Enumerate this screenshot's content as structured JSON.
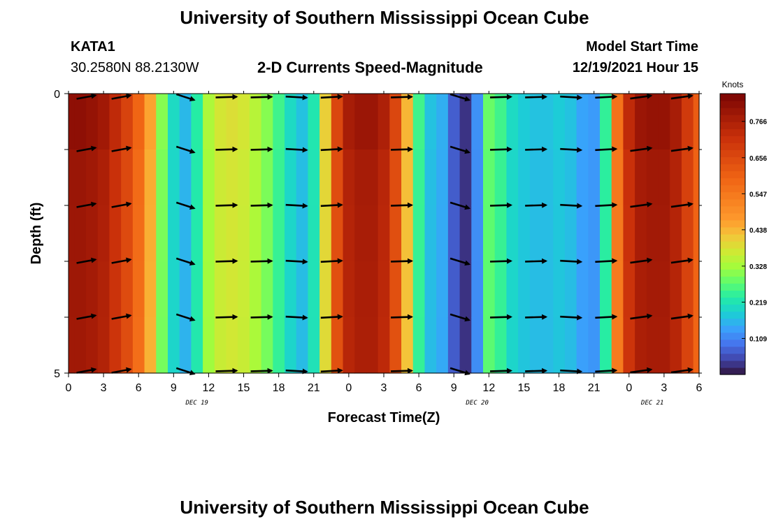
{
  "header": {
    "title": "University of Southern Mississippi Ocean Cube",
    "station": "KATA1",
    "coordinates": "30.2580N  88.2130W",
    "subtitle": "2-D Currents Speed-Magnitude",
    "model_start_label": "Model Start Time",
    "model_start_value": "12/19/2021 Hour 15",
    "footer_title": "University of Southern Mississippi Ocean Cube"
  },
  "chart_data": {
    "type": "heatmap",
    "title": "2-D Currents Speed-Magnitude",
    "xlabel": "Forecast Time(Z)",
    "ylabel": "Depth (ft)",
    "xlim": [
      0,
      54
    ],
    "ylim": [
      5,
      0
    ],
    "x_tick_values": [
      0,
      3,
      6,
      9,
      12,
      15,
      18,
      21,
      24,
      27,
      30,
      33,
      36,
      39,
      42,
      45,
      48,
      51,
      54
    ],
    "x_tick_labels": [
      "0",
      "3",
      "6",
      "9",
      "12",
      "15",
      "18",
      "21",
      "0",
      "3",
      "6",
      "9",
      "12",
      "15",
      "18",
      "21",
      "0",
      "3",
      "6"
    ],
    "y_tick_values": [
      0,
      5
    ],
    "y_tick_labels": [
      "0",
      "5"
    ],
    "date_labels": [
      {
        "label": "DEC 19",
        "hour": 11
      },
      {
        "label": "DEC 20",
        "hour": 35
      },
      {
        "label": "DEC 21",
        "hour": 50
      }
    ],
    "colorbar": {
      "title": "Knots",
      "min": 0.0,
      "max": 0.85,
      "tick_values": [
        0.109,
        0.219,
        0.328,
        0.438,
        0.547,
        0.656,
        0.766
      ],
      "tick_labels": [
        "0.109",
        "0.219",
        "0.328",
        "0.438",
        "0.547",
        "0.656",
        "0.766"
      ]
    },
    "hours": [
      0,
      1,
      2,
      3,
      4,
      5,
      6,
      7,
      8,
      9,
      10,
      11,
      12,
      13,
      14,
      15,
      16,
      17,
      18,
      19,
      20,
      21,
      22,
      23,
      24,
      25,
      26,
      27,
      28,
      29,
      30,
      31,
      32,
      33,
      34,
      35,
      36,
      37,
      38,
      39,
      40,
      41,
      42,
      43,
      44,
      45,
      46,
      47,
      48,
      49,
      50,
      51,
      52,
      53,
      54
    ],
    "speed_knots": [
      0.8,
      0.8,
      0.79,
      0.77,
      0.72,
      0.66,
      0.58,
      0.45,
      0.3,
      0.2,
      0.16,
      0.23,
      0.33,
      0.37,
      0.38,
      0.37,
      0.34,
      0.3,
      0.25,
      0.2,
      0.17,
      0.22,
      0.4,
      0.65,
      0.76,
      0.78,
      0.78,
      0.75,
      0.65,
      0.43,
      0.25,
      0.17,
      0.15,
      0.07,
      0.03,
      0.12,
      0.28,
      0.25,
      0.2,
      0.18,
      0.17,
      0.17,
      0.18,
      0.17,
      0.14,
      0.13,
      0.24,
      0.55,
      0.72,
      0.78,
      0.79,
      0.79,
      0.76,
      0.68,
      0.6
    ],
    "vector_hours": [
      1.5,
      4.5,
      10,
      13.5,
      16.5,
      19.5,
      22.5,
      28.5,
      33.5,
      37,
      40,
      43,
      46,
      49,
      52.5
    ],
    "vector_depths": [
      0,
      1,
      2,
      3,
      4,
      5
    ],
    "vectors": {
      "u": [
        0.9,
        0.9,
        0.85,
        1.0,
        1.0,
        1.0,
        1.0,
        1.0,
        0.9,
        1.0,
        1.0,
        1.0,
        1.0,
        1.0,
        1.0
      ],
      "v": [
        0.3,
        0.3,
        -0.5,
        0.05,
        0.05,
        -0.1,
        0.1,
        0.05,
        -0.5,
        0.05,
        0.05,
        -0.1,
        0.1,
        0.25,
        0.25
      ]
    }
  }
}
